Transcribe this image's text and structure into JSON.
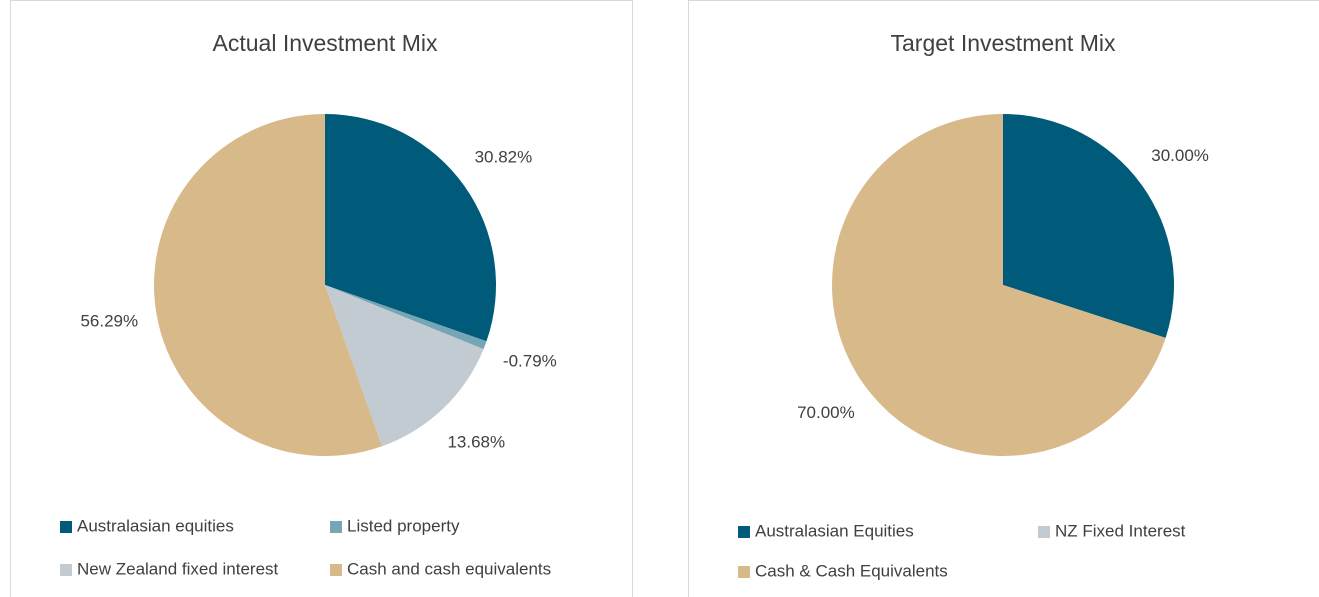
{
  "chart_data": [
    {
      "type": "pie",
      "title": "Actual Investment Mix",
      "categories": [
        "Australasian equities",
        "Listed property",
        "New Zealand fixed interest",
        "Cash and cash equivalents"
      ],
      "values": [
        30.82,
        -0.79,
        13.68,
        56.29
      ],
      "value_labels": [
        "30.82%",
        "-0.79%",
        "13.68%",
        "56.29%"
      ],
      "colors": [
        "#005a7a",
        "#74a6b5",
        "#c2cbd1",
        "#d7b98a"
      ]
    },
    {
      "type": "pie",
      "title": "Target Investment Mix",
      "categories": [
        "Australasian Equities",
        "NZ Fixed Interest",
        "Cash & Cash Equivalents"
      ],
      "values": [
        30,
        0,
        70
      ],
      "value_labels": [
        "30.00%",
        null,
        "70.00%"
      ],
      "colors": [
        "#005a7a",
        "#c2cbd1",
        "#d7b98a"
      ]
    }
  ]
}
